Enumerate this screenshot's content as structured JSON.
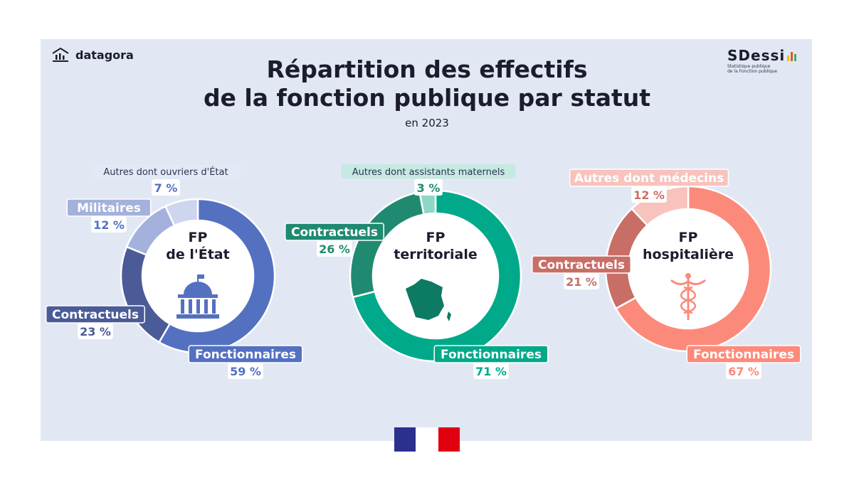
{
  "header": {
    "brand_name": "datagora",
    "brand_icon": "bar-chart-house-icon",
    "partner_logo_text": "SDessi",
    "partner_logo_subtitle_1": "Statistique publique",
    "partner_logo_subtitle_2": "de la Fonction publique",
    "title_line1": "Répartition des effectifs",
    "title_line2": "de la fonction publique par statut",
    "subtitle": "en 2023"
  },
  "footer": {
    "logo": "republique-francaise-flag-icon"
  },
  "chart_data": [
    {
      "type": "pie",
      "donut": true,
      "center_label": [
        "FP",
        "de l'État"
      ],
      "center_icon": "government-building-icon",
      "slices": [
        {
          "label": "Fonctionnaires",
          "value": 59,
          "value_label": "59 %",
          "color": "#5470c1"
        },
        {
          "label": "Contractuels",
          "value": 23,
          "value_label": "23 %",
          "color": "#4a5b97"
        },
        {
          "label": "Militaires",
          "value": 12,
          "value_label": "12 %",
          "color": "#a3b1dc"
        },
        {
          "label": "Autres dont ouvriers d'État",
          "value": 7,
          "value_label": "7 %",
          "color": "#cdd5ef"
        }
      ]
    },
    {
      "type": "pie",
      "donut": true,
      "center_label": [
        "FP",
        "territoriale"
      ],
      "center_icon": "france-map-icon",
      "slices": [
        {
          "label": "Fonctionnaires",
          "value": 71,
          "value_label": "71 %",
          "color": "#00a98a"
        },
        {
          "label": "Contractuels",
          "value": 26,
          "value_label": "26 %",
          "color": "#1f8a70"
        },
        {
          "label": "Autres dont assistants maternels",
          "value": 3,
          "value_label": "3 %",
          "color": "#8ed7c5"
        }
      ]
    },
    {
      "type": "pie",
      "donut": true,
      "center_label": [
        "FP",
        "hospitalière"
      ],
      "center_icon": "caduceus-icon",
      "slices": [
        {
          "label": "Fonctionnaires",
          "value": 67,
          "value_label": "67 %",
          "color": "#fc8a7b"
        },
        {
          "label": "Contractuels",
          "value": 21,
          "value_label": "21 %",
          "color": "#c86e66"
        },
        {
          "label": "Autres dont médecins",
          "value": 12,
          "value_label": "12 %",
          "color": "#f7c3bc"
        }
      ]
    }
  ]
}
